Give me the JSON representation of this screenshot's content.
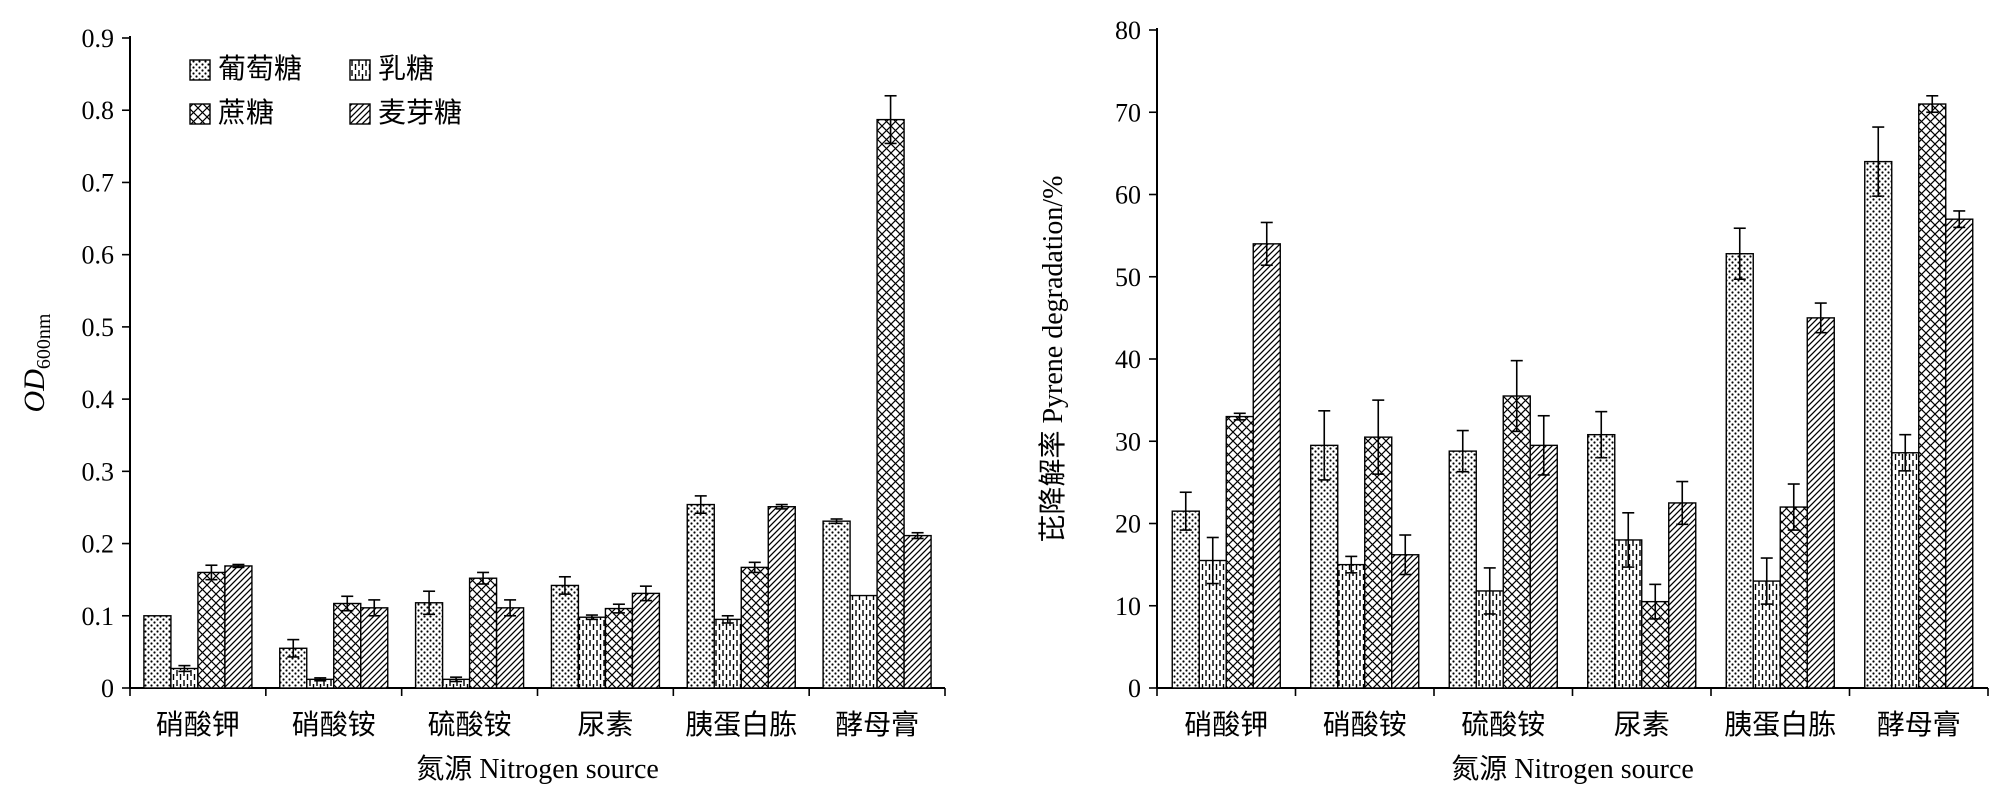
{
  "chart_data": [
    {
      "type": "bar",
      "ylabel_main": "OD",
      "ylabel_sub": "600nm",
      "xlabel": "氮源 Nitrogen source",
      "ylim": [
        0,
        0.9
      ],
      "yticks": [
        "0",
        "0.1",
        "0.2",
        "0.3",
        "0.4",
        "0.5",
        "0.6",
        "0.7",
        "0.8",
        "0.9"
      ],
      "categories": [
        "硝酸钾",
        "硝酸铵",
        "硫酸铵",
        "尿素",
        "胰蛋白胨",
        "酵母膏"
      ],
      "legend_position": "top-left",
      "series": [
        {
          "name": "葡萄糖",
          "values": [
            0.1,
            0.055,
            0.118,
            0.142,
            0.254,
            0.231
          ],
          "errors": [
            0.0,
            0.012,
            0.016,
            0.012,
            0.012,
            0.003
          ]
        },
        {
          "name": "乳糖",
          "values": [
            0.027,
            0.012,
            0.012,
            0.098,
            0.095,
            0.128
          ],
          "errors": [
            0.004,
            0.002,
            0.003,
            0.003,
            0.005,
            0.0
          ]
        },
        {
          "name": "蔗糖",
          "values": [
            0.16,
            0.117,
            0.152,
            0.11,
            0.167,
            0.787
          ],
          "errors": [
            0.01,
            0.01,
            0.008,
            0.006,
            0.007,
            0.033
          ]
        },
        {
          "name": "麦芽糖",
          "values": [
            0.169,
            0.111,
            0.111,
            0.131,
            0.251,
            0.211
          ],
          "errors": [
            0.002,
            0.011,
            0.011,
            0.01,
            0.003,
            0.004
          ]
        }
      ]
    },
    {
      "type": "bar",
      "ylabel": "芘降解率 Pyrene degradation/%",
      "xlabel": "氮源 Nitrogen source",
      "ylim": [
        0,
        80
      ],
      "yticks": [
        "0",
        "10",
        "20",
        "30",
        "40",
        "50",
        "60",
        "70",
        "80"
      ],
      "categories": [
        "硝酸钾",
        "硝酸铵",
        "硫酸铵",
        "尿素",
        "胰蛋白胨",
        "酵母膏"
      ],
      "series": [
        {
          "name": "葡萄糖",
          "values": [
            21.5,
            29.5,
            28.8,
            30.8,
            52.8,
            64.0
          ],
          "errors": [
            2.3,
            4.2,
            2.5,
            2.8,
            3.1,
            4.2
          ]
        },
        {
          "name": "乳糖",
          "values": [
            15.5,
            15.0,
            11.8,
            18.0,
            13.0,
            28.6
          ],
          "errors": [
            2.8,
            1.0,
            2.8,
            3.3,
            2.8,
            2.2
          ]
        },
        {
          "name": "蔗糖",
          "values": [
            33.0,
            30.5,
            35.5,
            10.5,
            22.0,
            71.0
          ],
          "errors": [
            0.4,
            4.5,
            4.3,
            2.1,
            2.8,
            1.0
          ]
        },
        {
          "name": "麦芽糖",
          "values": [
            54.0,
            16.2,
            29.5,
            22.5,
            45.0,
            57.0
          ],
          "errors": [
            2.6,
            2.4,
            3.6,
            2.6,
            1.8,
            1.0
          ]
        }
      ]
    }
  ]
}
